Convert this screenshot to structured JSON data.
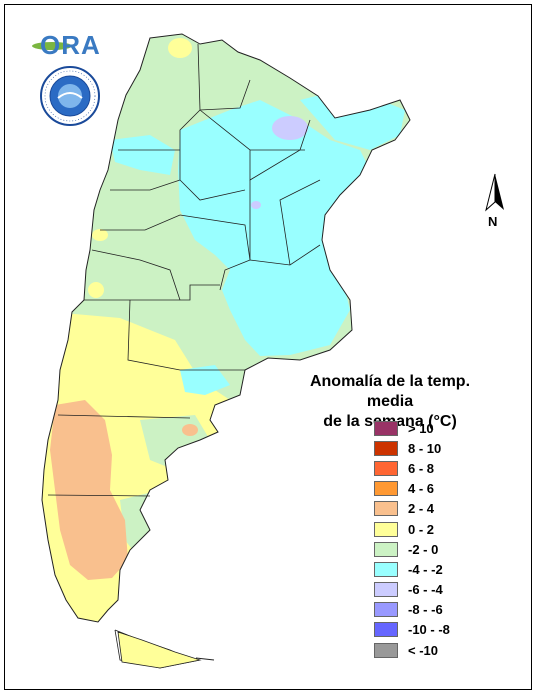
{
  "map": {
    "title_line1": "Anomalía de la temp. media",
    "title_line2": "de la semana (°C)",
    "north_label": "N",
    "logo_text": "ORA",
    "legend": [
      {
        "label": "> 10",
        "color": "#993366"
      },
      {
        "label": "8 - 10",
        "color": "#cc3300"
      },
      {
        "label": "6 - 8",
        "color": "#ff6633"
      },
      {
        "label": "4 - 6",
        "color": "#ff9933"
      },
      {
        "label": "2 - 4",
        "color": "#f9c08e"
      },
      {
        "label": "0 - 2",
        "color": "#ffff99"
      },
      {
        "label": "-2 - 0",
        "color": "#ccf2c4"
      },
      {
        "label": "-4 - -2",
        "color": "#99ffff"
      },
      {
        "label": "-6 - -4",
        "color": "#ccccff"
      },
      {
        "label": "-8 - -6",
        "color": "#9999ff"
      },
      {
        "label": "-10 - -8",
        "color": "#6666ff"
      },
      {
        "label": "< -10",
        "color": "#999999"
      }
    ]
  }
}
